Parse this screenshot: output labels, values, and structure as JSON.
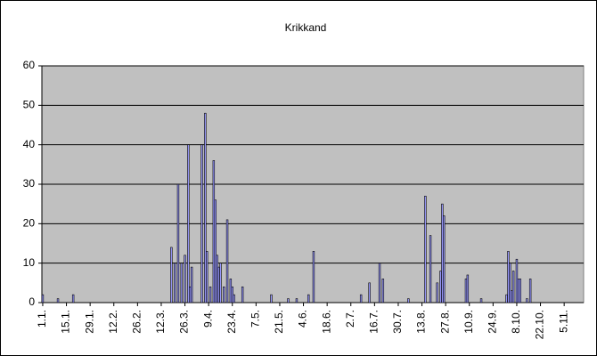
{
  "chart_data": {
    "type": "bar",
    "title": "Krikkand",
    "x": [
      0,
      9,
      18,
      76,
      78,
      80,
      82,
      84,
      86,
      87,
      88,
      94,
      96,
      97,
      99,
      101,
      102,
      103,
      104,
      105,
      107,
      109,
      111,
      112,
      113,
      118,
      135,
      145,
      150,
      157,
      160,
      188,
      193,
      199,
      201,
      216,
      226,
      229,
      233,
      235,
      236,
      237,
      250,
      251,
      259,
      274,
      275,
      276,
      277,
      278,
      280,
      281,
      282,
      286,
      288
    ],
    "values": [
      2,
      1,
      2,
      14,
      10,
      30,
      10,
      12,
      40,
      4,
      9,
      40,
      48,
      13,
      4,
      36,
      26,
      12,
      9,
      10,
      4,
      21,
      6,
      4,
      2,
      4,
      2,
      1,
      1,
      2,
      13,
      2,
      5,
      10,
      6,
      1,
      27,
      17,
      5,
      8,
      25,
      22,
      6,
      7,
      1,
      2,
      13,
      10,
      3,
      8,
      11,
      6,
      6,
      1,
      6
    ],
    "color": "#9999ff",
    "xlim": [
      -0.5,
      319.5
    ],
    "xticks": [
      {
        "value": 0,
        "label": "1.1."
      },
      {
        "value": 14,
        "label": "15.1."
      },
      {
        "value": 28,
        "label": "29.1."
      },
      {
        "value": 42,
        "label": "12.2."
      },
      {
        "value": 56,
        "label": "26.2."
      },
      {
        "value": 70,
        "label": "12.3."
      },
      {
        "value": 84,
        "label": "26.3."
      },
      {
        "value": 98,
        "label": "9.4."
      },
      {
        "value": 112,
        "label": "23.4."
      },
      {
        "value": 126,
        "label": "7.5."
      },
      {
        "value": 140,
        "label": "21.5."
      },
      {
        "value": 154,
        "label": "4.6."
      },
      {
        "value": 168,
        "label": "18.6."
      },
      {
        "value": 182,
        "label": "2.7."
      },
      {
        "value": 196,
        "label": "16.7."
      },
      {
        "value": 210,
        "label": "30.7."
      },
      {
        "value": 224,
        "label": "13.8."
      },
      {
        "value": 238,
        "label": "27.8."
      },
      {
        "value": 252,
        "label": "10.9."
      },
      {
        "value": 266,
        "label": "24.9."
      },
      {
        "value": 280,
        "label": "8.10."
      },
      {
        "value": 294,
        "label": "22.10."
      },
      {
        "value": 308,
        "label": "5.11."
      }
    ],
    "ylim": [
      0,
      60
    ],
    "yticks": [
      0,
      10,
      20,
      30,
      40,
      50,
      60
    ],
    "grid": true
  }
}
